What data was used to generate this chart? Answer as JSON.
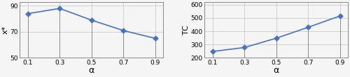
{
  "alpha": [
    0.1,
    0.3,
    0.5,
    0.7,
    0.9
  ],
  "x_star": [
    84,
    88,
    79,
    71,
    65
  ],
  "tc": [
    248,
    278,
    348,
    430,
    515
  ],
  "left_ylabel": "x*",
  "right_ylabel": "TC",
  "xlabel": "α",
  "left_ylim": [
    50,
    93
  ],
  "right_ylim": [
    200,
    620
  ],
  "left_yticks": [
    50,
    70,
    90
  ],
  "right_yticks": [
    200,
    300,
    400,
    500,
    600
  ],
  "line_color": "#4472C4",
  "marker": "D",
  "markersize": 3.5,
  "linewidth": 1.2,
  "grid_color": "#c0c0c0",
  "drop_line_color": "#808080",
  "bg_color": "#f5f5f5",
  "spine_color": "#888888",
  "tick_fontsize": 6.5,
  "label_fontsize": 8,
  "xlabel_fontsize": 9
}
